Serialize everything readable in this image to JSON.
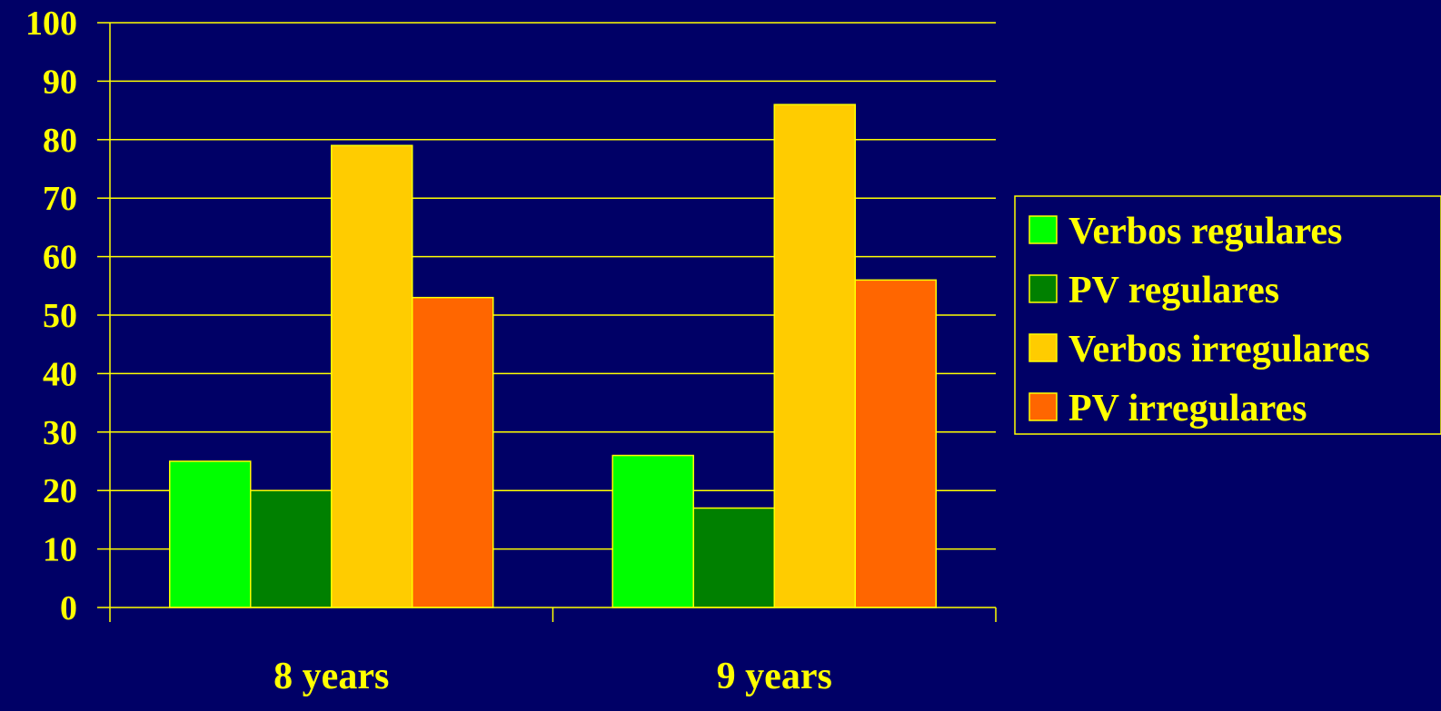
{
  "colors": {
    "background": "#000066",
    "grid": "#ffff00",
    "text": "#ffff00",
    "bar_border": "#ffff00"
  },
  "chart_data": {
    "type": "bar",
    "title": "",
    "xlabel": "",
    "ylabel": "",
    "categories": [
      "8 years",
      "9 years"
    ],
    "series": [
      {
        "name": "Verbos regulares",
        "values": [
          25,
          26
        ],
        "color": "#00ff00"
      },
      {
        "name": "PV regulares",
        "values": [
          20,
          17
        ],
        "color": "#008000"
      },
      {
        "name": "Verbos irregulares",
        "values": [
          79,
          86
        ],
        "color": "#ffcc00"
      },
      {
        "name": "PV irregulares",
        "values": [
          53,
          56
        ],
        "color": "#ff6600"
      }
    ],
    "ylim": [
      0,
      100
    ],
    "yticks": [
      0,
      10,
      20,
      30,
      40,
      50,
      60,
      70,
      80,
      90,
      100
    ],
    "grid": true,
    "legend_position": "right"
  }
}
